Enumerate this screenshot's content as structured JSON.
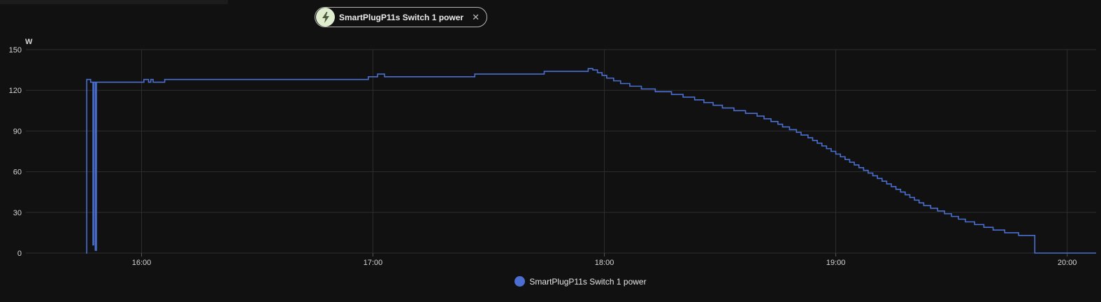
{
  "entity_chip": {
    "label": "SmartPlugP11s Switch 1 power",
    "icon": "lightning-bolt-icon",
    "close_icon": "close-icon"
  },
  "colors": {
    "background": "#111111",
    "series": "#4a6fd1",
    "grid": "#2e2e2e",
    "chip_icon_bg": "#dfeccd"
  },
  "chart_data": {
    "type": "line",
    "step": true,
    "unit": "W",
    "xlabel": "",
    "ylabel": "",
    "ylim": [
      0,
      150
    ],
    "yticks": [
      0,
      30,
      60,
      90,
      120,
      150
    ],
    "xlim_hours": [
      15.5,
      20.125
    ],
    "xticks": [
      {
        "label": "16:00",
        "value": 16.0
      },
      {
        "label": "17:00",
        "value": 17.0
      },
      {
        "label": "18:00",
        "value": 18.0
      },
      {
        "label": "19:00",
        "value": 19.0
      },
      {
        "label": "20:00",
        "value": 20.0
      }
    ],
    "grid": true,
    "legend_position": "bottom-center",
    "series": [
      {
        "name": "SmartPlugP11s Switch 1 power",
        "x_hours": [
          15.76,
          15.763,
          15.78,
          15.79,
          15.793,
          15.8,
          15.805,
          15.81,
          16.01,
          16.03,
          16.04,
          16.05,
          16.06,
          16.1,
          16.47,
          16.98,
          17.02,
          17.05,
          17.44,
          17.74,
          17.93,
          17.95,
          17.97,
          17.99,
          18.01,
          18.04,
          18.07,
          18.11,
          18.16,
          18.22,
          18.29,
          18.34,
          18.39,
          18.43,
          18.47,
          18.51,
          18.56,
          18.61,
          18.66,
          18.69,
          18.72,
          18.75,
          18.77,
          18.8,
          18.83,
          18.85,
          18.88,
          18.9,
          18.92,
          18.94,
          18.96,
          18.98,
          19.0,
          19.02,
          19.04,
          19.06,
          19.08,
          19.1,
          19.12,
          19.14,
          19.16,
          19.18,
          19.2,
          19.22,
          19.24,
          19.26,
          19.28,
          19.3,
          19.32,
          19.34,
          19.36,
          19.38,
          19.41,
          19.44,
          19.47,
          19.5,
          19.53,
          19.56,
          19.6,
          19.64,
          19.68,
          19.73,
          19.79,
          19.86,
          19.98,
          20.0,
          20.125
        ],
        "values": [
          0,
          128,
          126,
          6,
          126,
          2,
          126,
          126,
          128,
          126,
          128,
          126,
          126,
          128,
          128,
          130,
          132,
          130,
          132,
          134,
          136,
          135,
          133,
          131,
          129,
          127,
          125,
          123,
          121,
          119,
          117,
          115,
          113,
          111,
          109,
          107,
          105,
          103,
          101,
          99,
          97,
          95,
          93,
          91,
          89,
          87,
          85,
          83,
          81,
          79,
          77,
          75,
          73,
          71,
          69,
          67,
          65,
          63,
          61,
          59,
          57,
          55,
          53,
          51,
          49,
          47,
          45,
          43,
          41,
          39,
          37,
          35,
          33,
          31,
          29,
          27,
          25,
          23,
          21,
          19,
          17,
          15,
          13,
          0,
          0,
          0,
          0
        ]
      }
    ]
  },
  "legend": {
    "items": [
      {
        "label": "SmartPlugP11s Switch 1 power",
        "color": "#4a6fd1"
      }
    ]
  }
}
